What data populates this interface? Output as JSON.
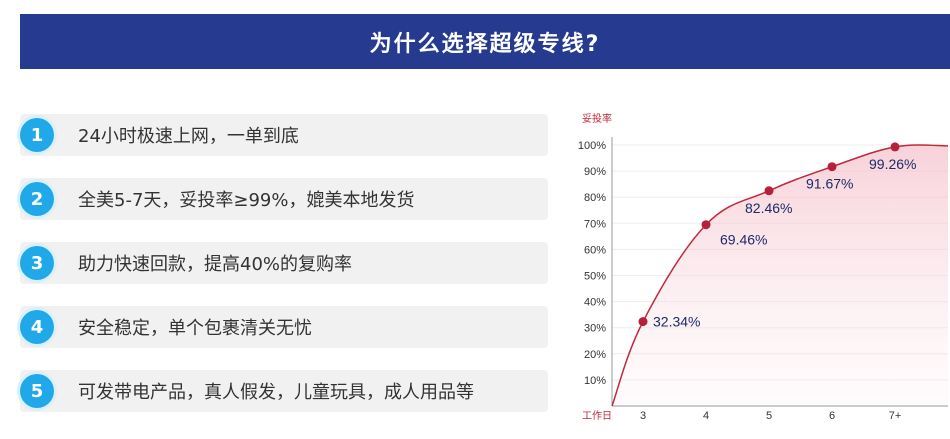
{
  "banner": {
    "title": "为什么选择超级专线?"
  },
  "features": [
    {
      "num": "1",
      "text": "24小时极速上网，一单到底"
    },
    {
      "num": "2",
      "text": "全美5-7天，妥投率≥99%，媲美本地发货"
    },
    {
      "num": "3",
      "text": "助力快速回款，提高40%的复购率"
    },
    {
      "num": "4",
      "text": "安全稳定，单个包裹清关无忧"
    },
    {
      "num": "5",
      "text": "可发带电产品，真人假发，儿童玩具，成人用品等"
    }
  ],
  "colors": {
    "banner": "#263a8f",
    "badge": "#21a8e8",
    "line": "#c0283c",
    "point": "#b5213a"
  },
  "chart_data": {
    "type": "area",
    "ylabel": "妥投率",
    "xlabel": "工作日",
    "categories": [
      "3",
      "4",
      "5",
      "6",
      "7+"
    ],
    "values": [
      32.34,
      69.46,
      82.46,
      91.67,
      99.26
    ],
    "data_labels": [
      "32.34%",
      "69.46%",
      "82.46%",
      "91.67%",
      "99.26%"
    ],
    "yticks": [
      "10%",
      "20%",
      "30%",
      "40%",
      "50%",
      "60%",
      "70%",
      "80%",
      "90%",
      "100%"
    ],
    "ylim": [
      0,
      100
    ],
    "grid": true
  }
}
